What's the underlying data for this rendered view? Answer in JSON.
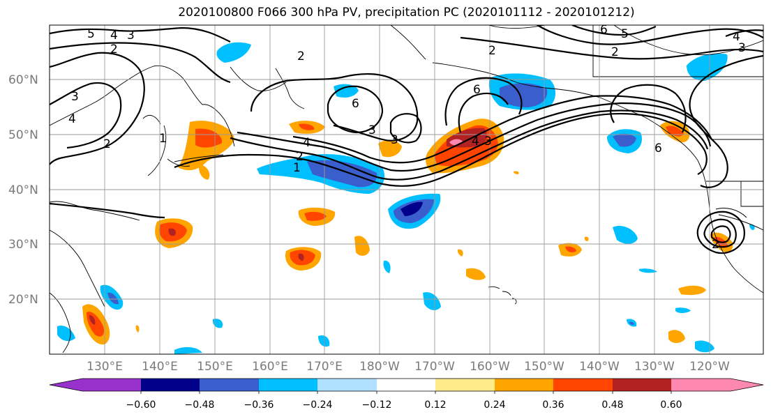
{
  "title": "2020100800 F066 300 hPa PV, precipitation PC (2020101112 - 2020101212)",
  "lat_labels": [
    "60°N",
    "50°N",
    "40°N",
    "30°N",
    "20°N"
  ],
  "lon_labels": [
    "130°E",
    "140°E",
    "150°E",
    "160°E",
    "170°E",
    "180°W",
    "170°W",
    "160°W",
    "150°W",
    "140°W",
    "130°W",
    "120°W"
  ],
  "colorbar": {
    "ticks": [
      "−0.60",
      "−0.48",
      "−0.36",
      "−0.24",
      "−0.12",
      "0.12",
      "0.24",
      "0.36",
      "0.48",
      "0.60"
    ],
    "colors": [
      "#9932CC",
      "#00008B",
      "#3A5FCD",
      "#00BFFF",
      "#B0E0FF",
      "#FFFFFF",
      "#FFEB8A",
      "#FFA500",
      "#FF4500",
      "#B22222",
      "#FF88B0"
    ]
  },
  "pv_contour_labels": [
    "5",
    "4",
    "3",
    "2",
    "2",
    "3",
    "4",
    "2",
    "1",
    "4",
    "2",
    "1",
    "6",
    "3",
    "3",
    "6",
    "4",
    "3",
    "2",
    "2",
    "6",
    "5",
    "4",
    "3",
    "6",
    "2"
  ]
}
